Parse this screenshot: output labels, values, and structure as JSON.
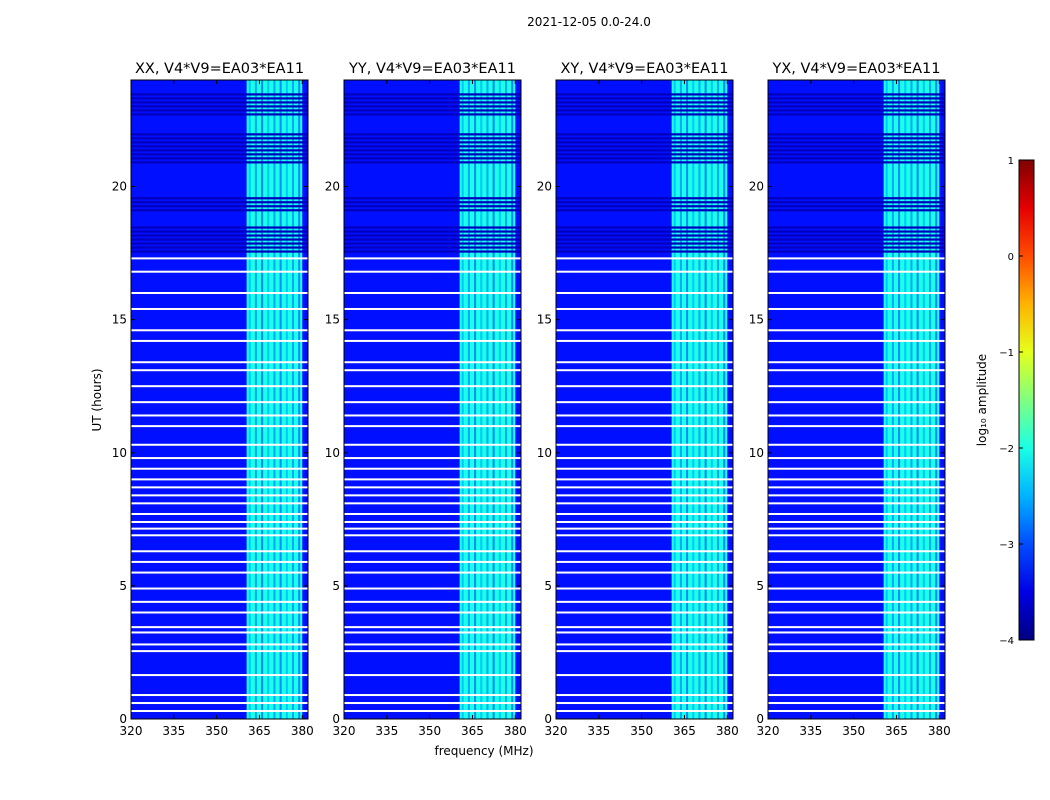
{
  "chart_data": {
    "type": "heatmap",
    "suptitle": "2021-12-05 0.0-24.0",
    "xlabel": "frequency (MHz)",
    "ylabel": "UT (hours)",
    "xlim": [
      320,
      382
    ],
    "ylim": [
      0,
      24
    ],
    "xticks": [
      320,
      335,
      350,
      365,
      380
    ],
    "yticks": [
      0,
      5,
      10,
      15,
      20
    ],
    "panels": [
      {
        "title": "XX, V4*V9=EA03*EA11"
      },
      {
        "title": "YY, V4*V9=EA03*EA11"
      },
      {
        "title": "XY, V4*V9=EA03*EA11"
      },
      {
        "title": "YX, V4*V9=EA03*EA11"
      }
    ],
    "colorbar": {
      "label": "log₁₀ amplitude",
      "range": [
        -4,
        1
      ],
      "ticks": [
        1,
        0,
        -1,
        -2,
        -3,
        -4
      ],
      "tick_labels": [
        "1",
        "0",
        "−1",
        "−2",
        "−3",
        "−4"
      ],
      "colormap": "jet"
    },
    "background_level": -3.3,
    "rfi_band": {
      "freq_range_mhz": [
        360.5,
        380
      ],
      "level": -2.0
    },
    "flagged_ut_hours": [
      0.3,
      0.6,
      0.9,
      1.65,
      2.55,
      2.8,
      3.25,
      3.45,
      4.0,
      4.4,
      4.9,
      5.5,
      5.9,
      6.3,
      6.9,
      7.15,
      7.4,
      7.7,
      8.1,
      8.4,
      8.7,
      9.0,
      9.4,
      9.8,
      10.3,
      11.0,
      11.4,
      11.9,
      12.5,
      13.1,
      13.4,
      14.2,
      14.6,
      15.4,
      16.0,
      16.8,
      17.3
    ],
    "low_amplitude_ut_hours": [
      [
        17.5,
        18.5
      ],
      [
        19.0,
        19.6
      ],
      [
        20.8,
        22.0
      ],
      [
        22.7,
        23.5
      ]
    ]
  }
}
